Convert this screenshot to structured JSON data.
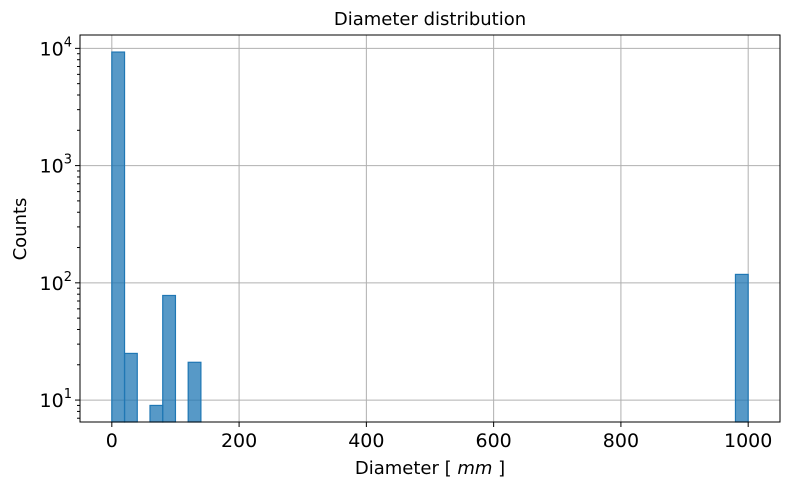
{
  "chart_data": {
    "type": "bar",
    "title": "Diameter distribution",
    "xlabel_prefix": "Diameter [ ",
    "xlabel_unit": "mm",
    "xlabel_suffix": " ]",
    "ylabel": "Counts",
    "yscale": "log",
    "xlim": [
      -50,
      1050
    ],
    "ylim": [
      6.5,
      13000
    ],
    "grid": true,
    "x_ticks": [
      0,
      200,
      400,
      600,
      800,
      1000
    ],
    "y_ticks": [
      {
        "value": 10,
        "base": "10",
        "exp": "1"
      },
      {
        "value": 100,
        "base": "10",
        "exp": "2"
      },
      {
        "value": 1000,
        "base": "10",
        "exp": "3"
      },
      {
        "value": 10000,
        "base": "10",
        "exp": "4"
      }
    ],
    "bar_color": "#1f77b4",
    "bar_alpha": 0.75,
    "bins": [
      {
        "x0": 0,
        "x1": 20,
        "count": 9300
      },
      {
        "x0": 20,
        "x1": 40,
        "count": 25
      },
      {
        "x0": 60,
        "x1": 80,
        "count": 9
      },
      {
        "x0": 80,
        "x1": 100,
        "count": 78
      },
      {
        "x0": 120,
        "x1": 140,
        "count": 21
      },
      {
        "x0": 980,
        "x1": 1000,
        "count": 118
      }
    ]
  }
}
